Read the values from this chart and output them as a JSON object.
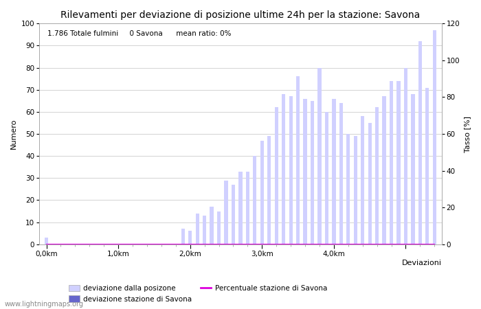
{
  "title": "Rilevamenti per deviazione di posizione ultime 24h per la stazione: Savona",
  "xlabel": "Deviazioni",
  "ylabel_left": "Numero",
  "ylabel_right": "Tasso [%]",
  "annotation": "1.786 Totale fulmini     0 Savona      mean ratio: 0%",
  "watermark": "www.lightningmaps.org",
  "bar_values": [
    3,
    0,
    0,
    0,
    0,
    0,
    0,
    0,
    0,
    0,
    0,
    0,
    0,
    0,
    0,
    0,
    0,
    0,
    0,
    7,
    6,
    14,
    13,
    17,
    15,
    29,
    27,
    33,
    33,
    40,
    47,
    49,
    62,
    68,
    67,
    76,
    66,
    65,
    80,
    60,
    66,
    64,
    50,
    49,
    58,
    55,
    62,
    67,
    74,
    74,
    80,
    68,
    92,
    71,
    97
  ],
  "bar_color_light": "#d0d0ff",
  "bar_color_dark": "#6666cc",
  "line_color": "#dd00dd",
  "line_values": [
    0,
    0,
    0,
    0,
    0,
    0,
    0,
    0,
    0,
    0,
    0,
    0,
    0,
    0,
    0,
    0,
    0,
    0,
    0,
    0,
    0,
    0,
    0,
    0,
    0,
    0,
    0,
    0,
    0,
    0,
    0,
    0,
    0,
    0,
    0,
    0,
    0,
    0,
    0,
    0,
    0,
    0,
    0,
    0,
    0,
    0,
    0,
    0,
    0,
    0,
    0,
    0,
    0,
    0,
    0
  ],
  "xtick_positions": [
    0,
    10,
    20,
    30,
    40,
    50
  ],
  "xtick_labels": [
    "0,0km",
    "1,0km",
    "2,0km",
    "3,0km",
    "4,0km",
    ""
  ],
  "ylim_left": [
    0,
    100
  ],
  "ylim_right": [
    0,
    120
  ],
  "yticks_left": [
    0,
    10,
    20,
    30,
    40,
    50,
    60,
    70,
    80,
    90,
    100
  ],
  "yticks_right": [
    0,
    20,
    40,
    60,
    80,
    100,
    120
  ],
  "grid_color": "#cccccc",
  "bg_color": "#ffffff",
  "legend_labels": [
    "deviazione dalla posizone",
    "deviazione stazione di Savona",
    "Percentuale stazione di Savona"
  ],
  "title_fontsize": 10,
  "label_fontsize": 8,
  "tick_fontsize": 7.5,
  "annotation_fontsize": 7.5
}
